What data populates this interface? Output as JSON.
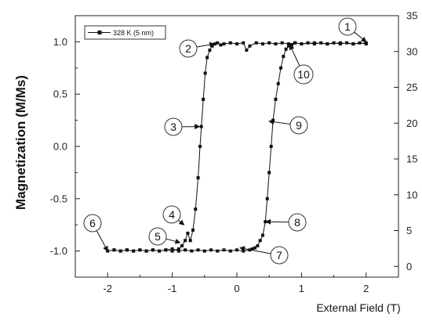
{
  "chart_data": {
    "type": "scatter",
    "title": "",
    "xlabel": "External Field (T)",
    "ylabel": "Magnetization (M/Ms)",
    "xlim": [
      -2.5,
      2.5
    ],
    "ylim": [
      -1.25,
      1.25
    ],
    "y2lim": [
      -1.5,
      35
    ],
    "xticks": [
      "-2",
      "-1",
      "0",
      "1",
      "2"
    ],
    "xtick_values": [
      -2,
      -1,
      0,
      1,
      2
    ],
    "yticks": [
      "-1.0",
      "-0.5",
      "0.0",
      "0.5",
      "1.0"
    ],
    "ytick_values": [
      -1.0,
      -0.5,
      0.0,
      0.5,
      1.0
    ],
    "y2ticks": [
      "0",
      "5",
      "10",
      "15",
      "20",
      "25",
      "30",
      "35"
    ],
    "y2tick_values": [
      0,
      5,
      10,
      15,
      20,
      25,
      30,
      35
    ],
    "legend": {
      "label": "328 K (5 nm)",
      "placement": "top-left"
    },
    "series": [
      {
        "name": "328 K (5 nm)",
        "color": "#111111",
        "points": [
          [
            2.0,
            0.98
          ],
          [
            1.9,
            0.99
          ],
          [
            1.8,
            0.98
          ],
          [
            1.7,
            0.99
          ],
          [
            1.6,
            0.98
          ],
          [
            1.5,
            0.99
          ],
          [
            1.4,
            0.98
          ],
          [
            1.3,
            0.99
          ],
          [
            1.2,
            0.98
          ],
          [
            1.1,
            0.99
          ],
          [
            1.0,
            0.98
          ],
          [
            0.9,
            0.99
          ],
          [
            0.85,
            0.97
          ],
          [
            0.8,
            0.96
          ],
          [
            0.76,
            0.93
          ],
          [
            0.72,
            0.86
          ],
          [
            0.68,
            0.75
          ],
          [
            0.64,
            0.6
          ],
          [
            0.6,
            0.45
          ],
          [
            0.56,
            0.25
          ],
          [
            0.53,
            0.0
          ],
          [
            0.5,
            -0.25
          ],
          [
            0.47,
            -0.5
          ],
          [
            0.44,
            -0.72
          ],
          [
            0.4,
            -0.85
          ],
          [
            0.36,
            -0.9
          ],
          [
            0.32,
            -0.95
          ],
          [
            0.28,
            -0.97
          ],
          [
            0.24,
            -0.98
          ],
          [
            0.2,
            -0.99
          ],
          [
            0.1,
            -1.0
          ],
          [
            0.0,
            -0.99
          ],
          [
            -0.1,
            -1.0
          ],
          [
            -0.2,
            -0.99
          ],
          [
            -0.3,
            -1.0
          ],
          [
            -0.4,
            -0.99
          ],
          [
            -0.5,
            -1.0
          ],
          [
            -0.6,
            -0.99
          ],
          [
            -0.7,
            -1.0
          ],
          [
            -0.8,
            -0.99
          ],
          [
            -0.9,
            -1.0
          ],
          [
            -1.0,
            -0.98
          ],
          [
            -1.1,
            -0.99
          ],
          [
            -1.2,
            -1.0
          ],
          [
            -1.3,
            -0.99
          ],
          [
            -1.4,
            -1.0
          ],
          [
            -1.5,
            -0.99
          ],
          [
            -1.6,
            -1.0
          ],
          [
            -1.7,
            -0.99
          ],
          [
            -1.8,
            -1.0
          ],
          [
            -1.9,
            -0.99
          ],
          [
            -2.0,
            -1.0
          ],
          [
            -1.9,
            -0.99
          ],
          [
            -1.8,
            -1.0
          ],
          [
            -1.7,
            -0.99
          ],
          [
            -1.6,
            -1.0
          ],
          [
            -1.5,
            -0.99
          ],
          [
            -1.4,
            -1.0
          ],
          [
            -1.3,
            -0.99
          ],
          [
            -1.2,
            -1.0
          ],
          [
            -1.1,
            -0.99
          ],
          [
            -1.0,
            -1.0
          ],
          [
            -0.9,
            -0.98
          ],
          [
            -0.85,
            -0.95
          ],
          [
            -0.8,
            -0.9
          ],
          [
            -0.76,
            -0.83
          ],
          [
            -0.72,
            -0.9
          ],
          [
            -0.68,
            -0.8
          ],
          [
            -0.64,
            -0.6
          ],
          [
            -0.6,
            -0.3
          ],
          [
            -0.57,
            0.0
          ],
          [
            -0.55,
            0.19
          ],
          [
            -0.52,
            0.45
          ],
          [
            -0.49,
            0.7
          ],
          [
            -0.46,
            0.85
          ],
          [
            -0.42,
            0.92
          ],
          [
            -0.38,
            0.96
          ],
          [
            -0.34,
            0.98
          ],
          [
            -0.3,
            0.99
          ],
          [
            -0.25,
            0.97
          ],
          [
            -0.2,
            0.98
          ],
          [
            -0.1,
            0.99
          ],
          [
            0.0,
            0.98
          ],
          [
            0.1,
            0.99
          ],
          [
            0.15,
            0.92
          ],
          [
            0.2,
            0.96
          ],
          [
            0.3,
            0.99
          ],
          [
            0.4,
            0.98
          ],
          [
            0.5,
            0.99
          ],
          [
            0.6,
            0.98
          ],
          [
            0.7,
            0.99
          ],
          [
            0.8,
            0.98
          ],
          [
            0.9,
            0.99
          ],
          [
            1.0,
            0.98
          ],
          [
            1.2,
            0.99
          ],
          [
            1.4,
            0.98
          ],
          [
            1.6,
            0.99
          ],
          [
            1.8,
            0.98
          ],
          [
            2.0,
            0.99
          ]
        ]
      }
    ],
    "annotations": [
      {
        "label": "1",
        "at": [
          2.0,
          1.0
        ]
      },
      {
        "label": "2",
        "at": [
          -0.35,
          0.98
        ]
      },
      {
        "label": "3",
        "at": [
          -0.58,
          0.19
        ]
      },
      {
        "label": "4",
        "at": [
          -0.82,
          -0.75
        ]
      },
      {
        "label": "5",
        "at": [
          -0.88,
          -0.92
        ]
      },
      {
        "label": "6",
        "at": [
          -2.0,
          -1.0
        ]
      },
      {
        "label": "7",
        "at": [
          0.05,
          -0.97
        ]
      },
      {
        "label": "8",
        "at": [
          0.45,
          -0.72
        ]
      },
      {
        "label": "9",
        "at": [
          0.5,
          0.24
        ]
      },
      {
        "label": "10",
        "at": [
          0.82,
          0.97
        ]
      }
    ]
  }
}
